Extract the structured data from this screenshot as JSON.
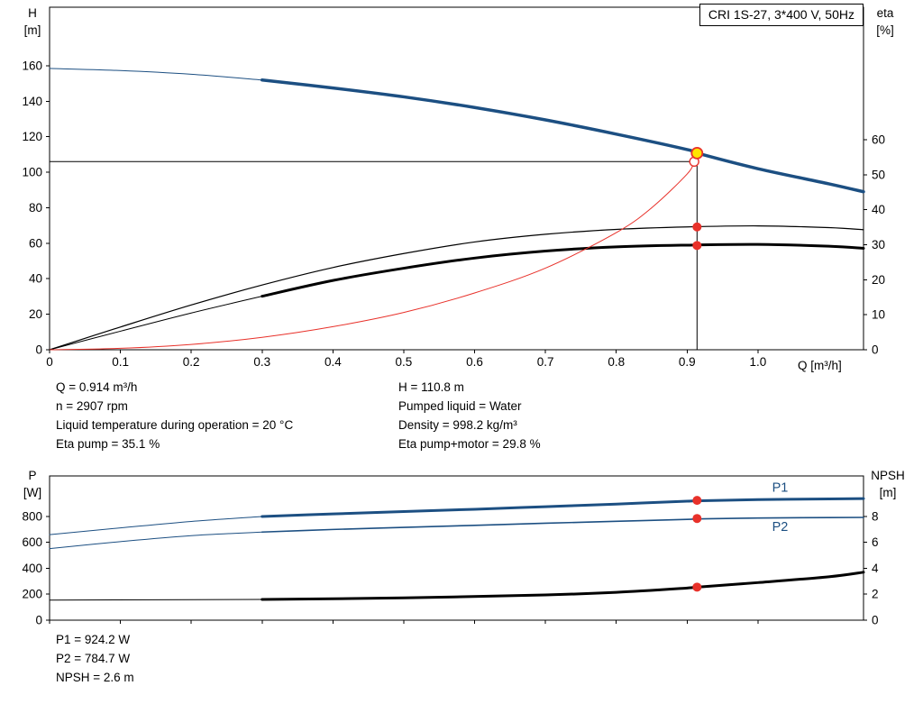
{
  "header": {
    "title": "CRI 1S-27, 3*400 V, 50Hz"
  },
  "colors": {
    "blue": "#1c4f82",
    "black": "#000000",
    "red": "#e8312a",
    "yellow": "#ffe400",
    "frame": "#000000"
  },
  "info": {
    "left": [
      "Q = 0.914 m³/h",
      "n = 2907 rpm",
      "Liquid temperature during operation = 20 °C",
      "Eta pump = 35.1 %"
    ],
    "right": [
      "H = 110.8 m",
      "Pumped liquid = Water",
      "Density = 998.2 kg/m³",
      "Eta pump+motor = 29.8 %"
    ]
  },
  "results": [
    "P1 = 924.2 W",
    "P2 = 784.7 W",
    "NPSH = 2.6 m"
  ],
  "chart_data": [
    {
      "type": "line",
      "title": "CRI 1S-27, 3*400 V, 50Hz",
      "x_axis": {
        "label": "Q [m³/h]",
        "min": 0,
        "max": 1.149,
        "ticks": [
          0,
          0.1,
          0.2,
          0.3,
          0.4,
          0.5,
          0.6,
          0.7,
          0.8,
          0.9,
          1.0
        ],
        "tick_labels": [
          "0",
          "0.1",
          "0.2",
          "0.3",
          "0.4",
          "0.5",
          "0.6",
          "0.7",
          "0.8",
          "0.9",
          "1.0"
        ]
      },
      "y_left": {
        "label": "H",
        "unit": "[m]",
        "min": 0,
        "max": 193,
        "ticks": [
          0,
          20,
          40,
          60,
          80,
          100,
          120,
          140,
          160
        ],
        "tick_labels": [
          "0",
          "20",
          "40",
          "60",
          "80",
          "100",
          "120",
          "140",
          "160"
        ]
      },
      "y_right": {
        "label": "eta",
        "unit": "[%]",
        "min": 0,
        "max": 97.9,
        "ticks": [
          0,
          10,
          20,
          30,
          40,
          50,
          60
        ],
        "tick_labels": [
          "0",
          "10",
          "20",
          "30",
          "40",
          "50",
          "60"
        ]
      },
      "series": [
        {
          "name": "pump-curve-extension",
          "axis": "left",
          "color": "blue",
          "width": 1,
          "points": [
            [
              0,
              158.5
            ],
            [
              0.1,
              157.3
            ],
            [
              0.2,
              155.2
            ],
            [
              0.3,
              152
            ]
          ]
        },
        {
          "name": "pump-curve",
          "axis": "left",
          "color": "blue",
          "width": 3.5,
          "points": [
            [
              0.3,
              152
            ],
            [
              0.4,
              147.5
            ],
            [
              0.5,
              142.5
            ],
            [
              0.6,
              136.5
            ],
            [
              0.7,
              129.5
            ],
            [
              0.8,
              121.5
            ],
            [
              0.9,
              112.8
            ],
            [
              0.914,
              110.8
            ],
            [
              1.0,
              102
            ],
            [
              1.1,
              93.5
            ],
            [
              1.149,
              89
            ]
          ]
        },
        {
          "name": "eta-pump-curve",
          "axis": "right",
          "color": "black",
          "width": 1.2,
          "points": [
            [
              0,
              0
            ],
            [
              0.1,
              6.5
            ],
            [
              0.2,
              12.8
            ],
            [
              0.3,
              18.5
            ],
            [
              0.4,
              23.5
            ],
            [
              0.5,
              27.5
            ],
            [
              0.6,
              30.8
            ],
            [
              0.7,
              33.0
            ],
            [
              0.8,
              34.4
            ],
            [
              0.9,
              35.1
            ],
            [
              1.0,
              35.4
            ],
            [
              1.1,
              34.9
            ],
            [
              1.149,
              34.3
            ]
          ]
        },
        {
          "name": "eta-pump-motor-extension",
          "axis": "right",
          "color": "black",
          "width": 1,
          "points": [
            [
              0,
              0
            ],
            [
              0.1,
              5.3
            ],
            [
              0.2,
              10.5
            ],
            [
              0.3,
              15.3
            ]
          ]
        },
        {
          "name": "eta-pump-motor-curve",
          "axis": "right",
          "color": "black",
          "width": 3,
          "points": [
            [
              0.3,
              15.3
            ],
            [
              0.4,
              19.8
            ],
            [
              0.5,
              23.3
            ],
            [
              0.6,
              26.2
            ],
            [
              0.7,
              28.2
            ],
            [
              0.8,
              29.4
            ],
            [
              0.9,
              29.9
            ],
            [
              1.0,
              30.1
            ],
            [
              1.1,
              29.6
            ],
            [
              1.149,
              29.0
            ]
          ]
        },
        {
          "name": "system-curve",
          "axis": "left",
          "color": "red",
          "width": 1,
          "points": [
            [
              0,
              0
            ],
            [
              0.1,
              0.8
            ],
            [
              0.2,
              3
            ],
            [
              0.3,
              7
            ],
            [
              0.4,
              13
            ],
            [
              0.5,
              21
            ],
            [
              0.6,
              32
            ],
            [
              0.7,
              46
            ],
            [
              0.8,
              66
            ],
            [
              0.85,
              80
            ],
            [
              0.9,
              99
            ],
            [
              0.91,
              106
            ]
          ]
        }
      ],
      "ref_lines": [
        {
          "orientation": "h",
          "axis": "left",
          "value": 106,
          "from": 0,
          "to": 0.914
        },
        {
          "orientation": "v",
          "axis": "left",
          "value": 0.914,
          "from": 0,
          "to": 110.8
        }
      ],
      "markers": [
        {
          "type": "open",
          "axis": "left",
          "q": 0.91,
          "v": 106,
          "r": 5
        },
        {
          "type": "duty",
          "axis": "left",
          "q": 0.914,
          "v": 110.8,
          "r": 6
        },
        {
          "type": "dot",
          "axis": "right",
          "q": 0.914,
          "v": 35.1,
          "r": 5
        },
        {
          "type": "dot",
          "axis": "right",
          "q": 0.914,
          "v": 29.8,
          "r": 5
        }
      ],
      "labels": []
    },
    {
      "type": "line",
      "title": "",
      "x_axis": {
        "label": "",
        "min": 0,
        "max": 1.149,
        "ticks": [
          0,
          0.1,
          0.2,
          0.3,
          0.4,
          0.5,
          0.6,
          0.7,
          0.8,
          0.9,
          1.0
        ],
        "tick_labels": null
      },
      "y_left": {
        "label": "P",
        "unit": "[W]",
        "min": 0,
        "max": 1113,
        "ticks": [
          0,
          200,
          400,
          600,
          800
        ],
        "tick_labels": [
          "0",
          "200",
          "400",
          "600",
          "800"
        ]
      },
      "y_right": {
        "label": "NPSH",
        "unit": "[m]",
        "min": 0,
        "max": 11.13,
        "ticks": [
          0,
          2,
          4,
          6,
          8
        ],
        "tick_labels": [
          "0",
          "2",
          "4",
          "6",
          "8"
        ]
      },
      "series": [
        {
          "name": "p1-extension",
          "axis": "left",
          "color": "blue",
          "width": 1,
          "points": [
            [
              0,
              660
            ],
            [
              0.1,
              712
            ],
            [
              0.2,
              762
            ],
            [
              0.3,
              800
            ]
          ]
        },
        {
          "name": "p1-curve",
          "axis": "left",
          "color": "blue",
          "width": 3,
          "points": [
            [
              0.3,
              800
            ],
            [
              0.4,
              820
            ],
            [
              0.5,
              838
            ],
            [
              0.6,
              856
            ],
            [
              0.7,
              876
            ],
            [
              0.8,
              896
            ],
            [
              0.9,
              918
            ],
            [
              0.914,
              921
            ],
            [
              1.0,
              930
            ],
            [
              1.1,
              936
            ],
            [
              1.149,
              938
            ]
          ]
        },
        {
          "name": "p2-extension",
          "axis": "left",
          "color": "blue",
          "width": 1,
          "points": [
            [
              0,
              552
            ],
            [
              0.1,
              606
            ],
            [
              0.2,
              652
            ],
            [
              0.3,
              680
            ]
          ]
        },
        {
          "name": "p2-curve",
          "axis": "left",
          "color": "blue",
          "width": 1.6,
          "points": [
            [
              0.3,
              680
            ],
            [
              0.4,
              700
            ],
            [
              0.5,
              716
            ],
            [
              0.6,
              732
            ],
            [
              0.7,
              748
            ],
            [
              0.8,
              763
            ],
            [
              0.9,
              778
            ],
            [
              0.914,
              781
            ],
            [
              1.0,
              788
            ],
            [
              1.1,
              792
            ],
            [
              1.149,
              793
            ]
          ]
        },
        {
          "name": "npsh-extension",
          "axis": "right",
          "color": "black",
          "width": 1,
          "points": [
            [
              0,
              1.55
            ],
            [
              0.15,
              1.57
            ],
            [
              0.3,
              1.6
            ]
          ]
        },
        {
          "name": "npsh-curve",
          "axis": "right",
          "color": "black",
          "width": 3,
          "points": [
            [
              0.3,
              1.6
            ],
            [
              0.5,
              1.72
            ],
            [
              0.7,
              1.95
            ],
            [
              0.8,
              2.15
            ],
            [
              0.9,
              2.48
            ],
            [
              0.914,
              2.55
            ],
            [
              1.0,
              2.9
            ],
            [
              1.1,
              3.35
            ],
            [
              1.149,
              3.7
            ]
          ]
        }
      ],
      "ref_lines": [],
      "markers": [
        {
          "type": "dot",
          "axis": "left",
          "q": 0.914,
          "v": 924.2,
          "r": 5
        },
        {
          "type": "dot",
          "axis": "left",
          "q": 0.914,
          "v": 784.7,
          "r": 5
        },
        {
          "type": "dot",
          "axis": "right",
          "q": 0.914,
          "v": 2.55,
          "r": 5
        }
      ],
      "labels": [
        {
          "text": "P1",
          "axis": "left",
          "q": 1.02,
          "v": 990,
          "color": "blue"
        },
        {
          "text": "P2",
          "axis": "left",
          "q": 1.02,
          "v": 690,
          "color": "blue"
        }
      ]
    }
  ]
}
